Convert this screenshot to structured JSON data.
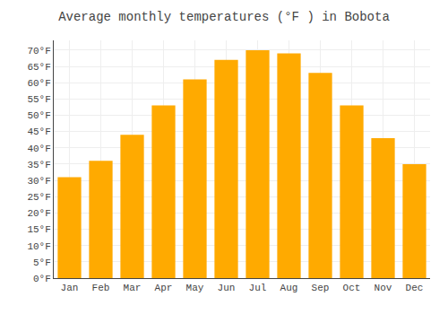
{
  "chart_data": {
    "type": "bar",
    "title": "Average monthly temperatures (°F ) in Bobota",
    "categories": [
      "Jan",
      "Feb",
      "Mar",
      "Apr",
      "May",
      "Jun",
      "Jul",
      "Aug",
      "Sep",
      "Oct",
      "Nov",
      "Dec"
    ],
    "values": [
      31,
      36,
      44,
      53,
      61,
      67,
      70,
      69,
      63,
      53,
      43,
      35
    ],
    "color": "#FFAA00",
    "ylim": [
      0,
      73
    ],
    "yticks": [
      {
        "value": 0,
        "label": "0°F"
      },
      {
        "value": 5,
        "label": "5°F"
      },
      {
        "value": 10,
        "label": "10°F"
      },
      {
        "value": 15,
        "label": "15°F"
      },
      {
        "value": 20,
        "label": "20°F"
      },
      {
        "value": 25,
        "label": "25°F"
      },
      {
        "value": 30,
        "label": "30°F"
      },
      {
        "value": 35,
        "label": "35°F"
      },
      {
        "value": 40,
        "label": "40°F"
      },
      {
        "value": 45,
        "label": "45°F"
      },
      {
        "value": 50,
        "label": "50°F"
      },
      {
        "value": 55,
        "label": "55°F"
      },
      {
        "value": 60,
        "label": "60°F"
      },
      {
        "value": 65,
        "label": "65°F"
      },
      {
        "value": 70,
        "label": "70°F"
      }
    ],
    "grid": true
  }
}
